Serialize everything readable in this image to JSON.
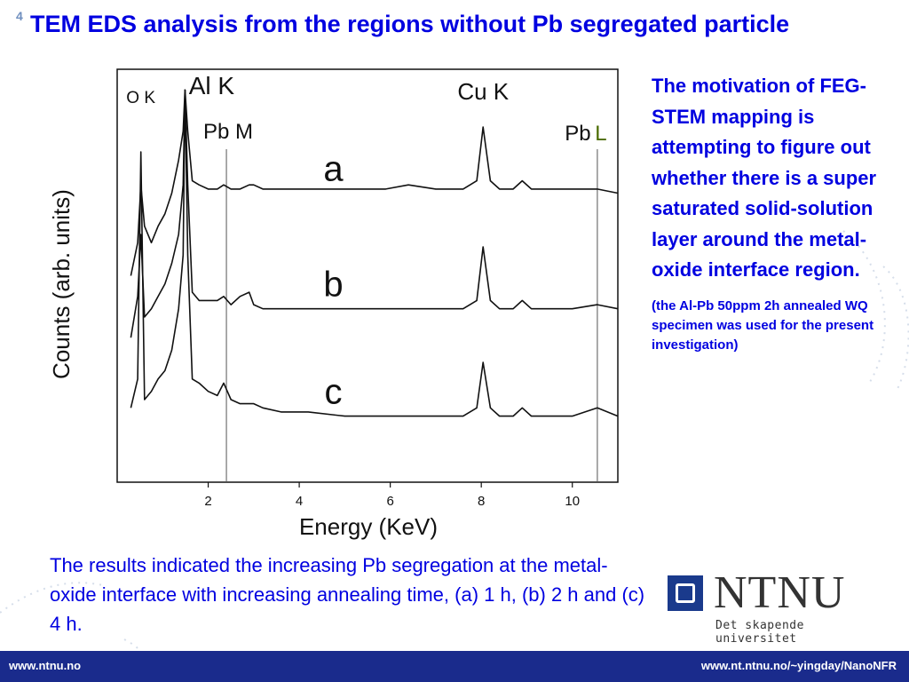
{
  "slide_number": "4",
  "title": "TEM EDS analysis from the regions without Pb segregated particle",
  "side_text": {
    "main": "The motivation of FEG-STEM mapping is attempting to figure out whether there is a super saturated solid-solution layer around the metal-oxide interface region.",
    "note": "(the Al-Pb 50ppm 2h annealed WQ specimen was used for the present investigation)"
  },
  "caption": "The results indicated the increasing Pb segregation at the metal-oxide interface with increasing annealing time, (a) 1 h, (b) 2 h and (c) 4 h.",
  "logo": {
    "name": "NTNU",
    "tagline": "Det skapende universitet"
  },
  "footer": {
    "left": "www.ntnu.no",
    "right": "www.nt.ntnu.no/~yingday/NanoNFR"
  },
  "colors": {
    "accent": "#0000e0",
    "footer_bg": "#1a2b8c",
    "logo_blue": "#1a3a8c",
    "pb_l_label": "#4a6b00"
  },
  "chart_data": {
    "type": "line",
    "xlabel": "Energy (KeV)",
    "ylabel": "Counts (arb. units)",
    "xlim": [
      0,
      11
    ],
    "xticks": [
      2,
      4,
      6,
      8,
      10
    ],
    "ylim": [
      0,
      100
    ],
    "peak_labels": [
      {
        "text": "O K",
        "x": 0.52
      },
      {
        "text": "Al K",
        "x": 1.49
      },
      {
        "text": "Pb M",
        "x": 2.34
      },
      {
        "text": "Cu K",
        "x": 8.04
      },
      {
        "text": "Pb",
        "x": 10.55
      },
      {
        "text": "L",
        "x": 10.55
      }
    ],
    "reference_lines": [
      2.4,
      10.55
    ],
    "series": [
      {
        "name": "a",
        "x": [
          0.3,
          0.45,
          0.52,
          0.6,
          0.75,
          0.9,
          1.05,
          1.2,
          1.35,
          1.45,
          1.49,
          1.55,
          1.65,
          1.8,
          2.0,
          2.2,
          2.34,
          2.5,
          2.7,
          2.9,
          3.0,
          3.2,
          3.6,
          4.2,
          5.0,
          5.9,
          6.4,
          7.0,
          7.6,
          7.9,
          8.04,
          8.2,
          8.4,
          8.7,
          8.9,
          9.1,
          9.5,
          10.0,
          10.55,
          11.0
        ],
        "y": [
          50,
          58,
          72,
          62,
          58,
          62,
          65,
          70,
          78,
          85,
          95,
          85,
          73,
          72,
          71,
          71,
          72,
          71,
          71,
          72,
          72,
          71,
          71,
          71,
          71,
          71,
          72,
          71,
          71,
          73,
          86,
          73,
          71,
          71,
          73,
          71,
          71,
          71,
          71,
          70
        ]
      },
      {
        "name": "b",
        "x": [
          0.3,
          0.45,
          0.52,
          0.6,
          0.75,
          0.9,
          1.05,
          1.2,
          1.35,
          1.45,
          1.49,
          1.55,
          1.65,
          1.8,
          2.0,
          2.2,
          2.34,
          2.5,
          2.7,
          2.9,
          3.0,
          3.2,
          3.6,
          4.2,
          5.0,
          5.9,
          6.4,
          7.0,
          7.6,
          7.9,
          8.04,
          8.2,
          8.4,
          8.7,
          8.9,
          9.1,
          9.5,
          10.0,
          10.55,
          11.0
        ],
        "y": [
          35,
          45,
          60,
          40,
          42,
          45,
          48,
          53,
          60,
          72,
          95,
          72,
          46,
          44,
          44,
          44,
          45,
          43,
          45,
          46,
          43,
          42,
          42,
          42,
          42,
          42,
          42,
          42,
          42,
          44,
          57,
          44,
          42,
          42,
          44,
          42,
          42,
          42,
          43,
          42
        ]
      },
      {
        "name": "c",
        "x": [
          0.3,
          0.45,
          0.52,
          0.6,
          0.75,
          0.9,
          1.05,
          1.2,
          1.35,
          1.45,
          1.49,
          1.55,
          1.65,
          1.8,
          2.0,
          2.2,
          2.34,
          2.5,
          2.7,
          2.9,
          3.0,
          3.2,
          3.6,
          4.2,
          5.0,
          5.9,
          6.4,
          7.0,
          7.6,
          7.9,
          8.04,
          8.2,
          8.4,
          8.7,
          8.9,
          9.1,
          9.5,
          10.0,
          10.55,
          11.0
        ],
        "y": [
          18,
          25,
          80,
          20,
          22,
          25,
          27,
          32,
          42,
          55,
          95,
          55,
          25,
          24,
          22,
          21,
          24,
          20,
          19,
          19,
          19,
          18,
          17,
          17,
          16,
          16,
          16,
          16,
          16,
          18,
          29,
          18,
          16,
          16,
          18,
          16,
          16,
          16,
          18,
          16
        ]
      }
    ],
    "grid": false,
    "legend": "none"
  }
}
